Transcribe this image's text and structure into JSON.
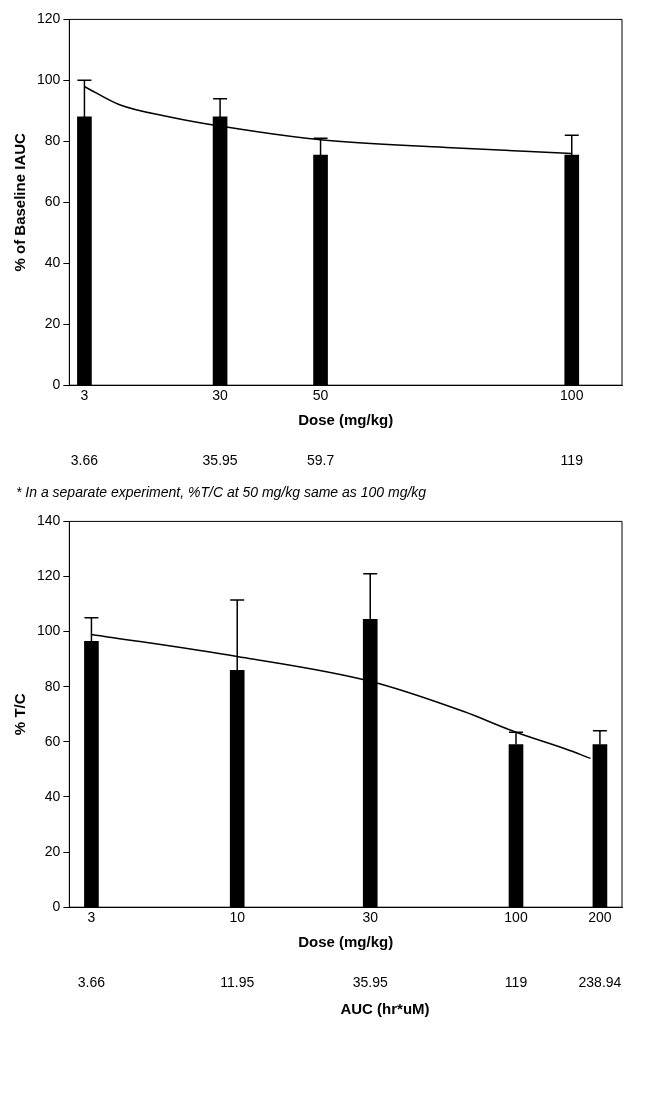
{
  "chart_data": [
    {
      "type": "bar",
      "xlabel": "Dose (mg/kg)",
      "ylabel": "% of Baseline IAUC",
      "x": [
        3,
        30,
        50,
        100
      ],
      "series": [
        {
          "color": "#000000",
          "values": [
            88,
            88,
            75.5,
            75.5
          ],
          "errors": [
            [
              88,
              100
            ],
            [
              88,
              94
            ],
            [
              75.5,
              81
            ],
            [
              75.5,
              82
            ]
          ]
        },
        {
          "type": "line",
          "color": "#000000",
          "marker": "none",
          "x": [
            3,
            10,
            20,
            30,
            50,
            75,
            100
          ],
          "values": [
            98,
            92,
            88,
            85,
            80.5,
            78,
            76
          ]
        }
      ],
      "xlim": [
        0,
        110
      ],
      "xticks": [
        3,
        30,
        50,
        100
      ],
      "ylim": [
        0,
        120
      ],
      "yticks": [
        0,
        20,
        40,
        60,
        80,
        100,
        120
      ],
      "grid": false,
      "legend": false,
      "annotations": [
        "3.66",
        "35.95",
        "59.7",
        "119",
        "* In a separate experiment, %T/C at 50 mg/kg same as 100 mg/kg"
      ]
    },
    {
      "type": "bar",
      "xlabel": "Dose (mg/kg)",
      "ylabel": "% T/C",
      "x2label": "AUC (hr*uM)",
      "x": [
        3,
        10,
        30,
        100,
        200
      ],
      "series": [
        {
          "color": "#000000",
          "values": [
            96.5,
            86,
            104.5,
            59,
            59
          ],
          "errors": [
            [
              96.5,
              105
            ],
            [
              86,
              111.5
            ],
            [
              104.5,
              121
            ],
            [
              59,
              63.5
            ],
            [
              59,
              64
            ]
          ]
        },
        {
          "type": "line",
          "color": "#000000",
          "marker": "none",
          "x": [
            3,
            10,
            30,
            65,
            100,
            150,
            185
          ],
          "values": [
            99,
            91,
            82,
            71,
            63.5,
            57.5,
            54
          ]
        }
      ],
      "log": "x",
      "xlim": [
        2.5,
        240
      ],
      "xticks": [
        3,
        10,
        30,
        100,
        200
      ],
      "ylim": [
        0,
        140
      ],
      "yticks": [
        0,
        20,
        40,
        60,
        80,
        100,
        120,
        140
      ],
      "grid": false,
      "legend": false,
      "annotations": [
        "3.66",
        "11.95",
        "35.95",
        "119",
        "238.94"
      ]
    }
  ]
}
